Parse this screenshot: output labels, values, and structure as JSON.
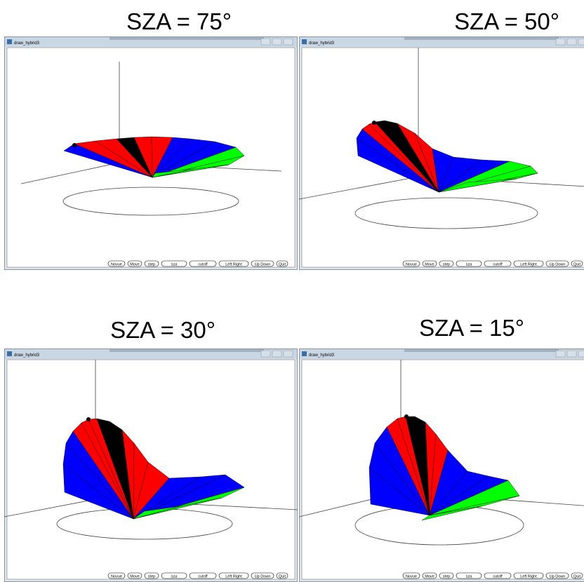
{
  "panels": [
    {
      "label": "SZA = 75°",
      "window_title": "draw_hybrid3",
      "buttons": [
        "Novue",
        "Move",
        "step",
        "sza",
        "cutoff",
        "Left Right",
        "Up Down",
        "Quit"
      ]
    },
    {
      "label": "SZA = 50°",
      "window_title": "draw_hybrid3",
      "buttons": [
        "Novue",
        "Move",
        "step",
        "sza",
        "cutoff",
        "Left Right",
        "Up Down",
        "Quit"
      ]
    },
    {
      "label": "SZA = 30°",
      "window_title": "draw_hybrid3",
      "buttons": [
        "Novue",
        "Move",
        "step",
        "sza",
        "cutoff",
        "Left Right",
        "Up Down",
        "Quit"
      ]
    },
    {
      "label": "SZA = 15°",
      "window_title": "draw_hybrid3",
      "buttons": [
        "Novue",
        "Move",
        "step",
        "sza",
        "cutoff",
        "Left Right",
        "Up Down",
        "Quit"
      ]
    }
  ]
}
